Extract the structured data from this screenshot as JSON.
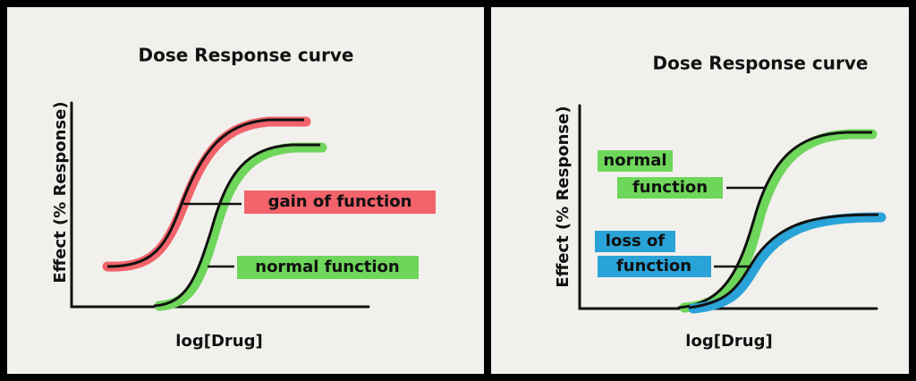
{
  "panels": [
    {
      "title": "Dose Response curve",
      "y_axis_label": "Effect (% Response)",
      "x_axis_label": "log[Drug]",
      "annotations": [
        {
          "lines": [
            "gain of function"
          ]
        },
        {
          "lines": [
            "normal function"
          ]
        }
      ]
    },
    {
      "title": "Dose Response curve",
      "y_axis_label": "Effect (% Response)",
      "x_axis_label": "log[Drug]",
      "annotations": [
        {
          "lines": [
            "normal",
            "function"
          ]
        },
        {
          "lines": [
            "loss of",
            "function"
          ]
        }
      ]
    }
  ]
}
